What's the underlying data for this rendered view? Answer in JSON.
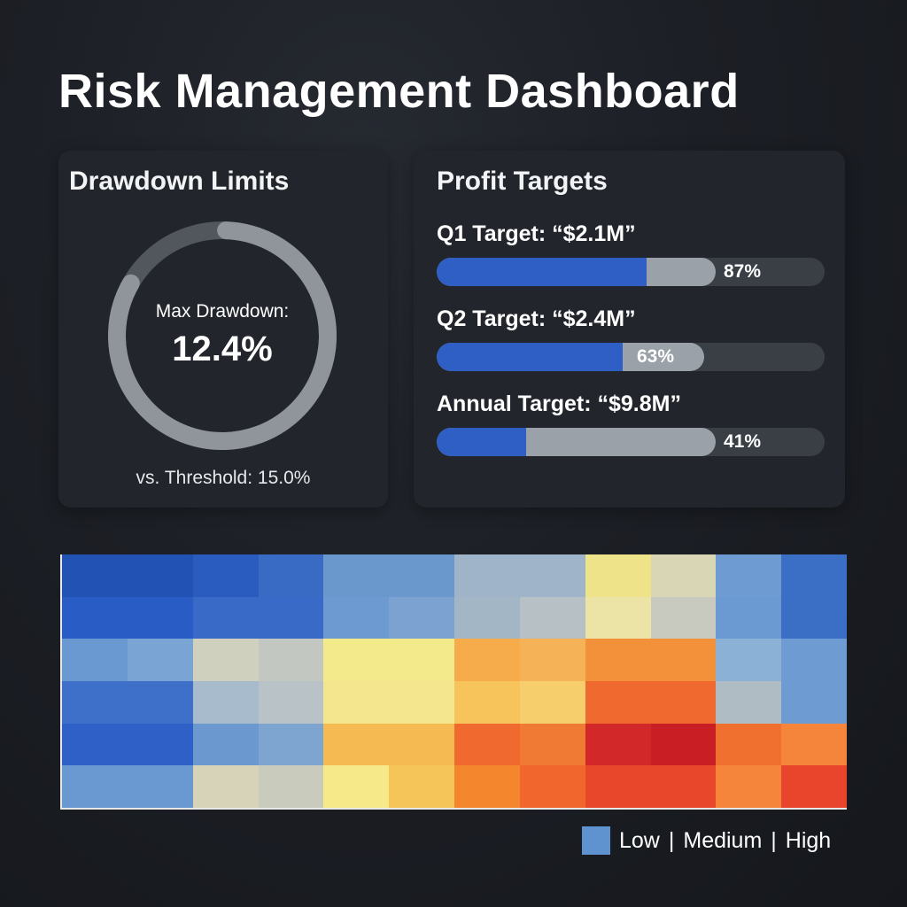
{
  "title": "Risk Management Dashboard",
  "drawdown": {
    "title": "Drawdown Limits",
    "label": "Max Drawdown:",
    "value": "12.4%",
    "threshold": "vs. Threshold: 15.0%",
    "ring_fraction": 0.827,
    "colors": {
      "ring": "#8f959b",
      "track": "#52575e"
    }
  },
  "profit": {
    "title": "Profit Targets",
    "targets": [
      {
        "label": "Q1 Target: “$2.1M”",
        "pct": "87%",
        "fill_fraction": 0.54,
        "mid_fraction": 0.72
      },
      {
        "label": "Q2 Target: “$2.4M”",
        "pct": "63%",
        "fill_fraction": 0.48,
        "mid_fraction": 0.69
      },
      {
        "label": "Annual Target: “$9.8M”",
        "pct": "41%",
        "fill_fraction": 0.23,
        "mid_fraction": 0.72
      }
    ],
    "colors": {
      "fill": "#2f5fc4",
      "mid": "#9aa1a8",
      "track": "#3a3f46"
    }
  },
  "heatmap": {
    "rows": [
      [
        "#2352b5",
        "#2352b5",
        "#2a5cc0",
        "#3a6bc4",
        "#6a98cc",
        "#6a98cc",
        "#9fb4c8",
        "#9fb4c8",
        "#efe38a",
        "#d8d6b4",
        "#6e9cd2",
        "#3b6fc6"
      ],
      [
        "#2a5cc5",
        "#2a5cc5",
        "#3a6ac8",
        "#3a6ac8",
        "#6d9ad0",
        "#7ba2d0",
        "#a3b6c6",
        "#b7c0c4",
        "#ece3a6",
        "#c8cac0",
        "#6b99d2",
        "#3b6fc6"
      ],
      [
        "#6a99d1",
        "#7aa4d3",
        "#cfd0bd",
        "#c2c7c2",
        "#f3ea8b",
        "#f3ea8b",
        "#f6ac4b",
        "#f6b256",
        "#f3913a",
        "#f3913a",
        "#8bb1d6",
        "#6e9bd2"
      ],
      [
        "#3e70c9",
        "#3e70c9",
        "#a8bbcc",
        "#b9c2c6",
        "#f4e68e",
        "#f4e68e",
        "#f7c35b",
        "#f6cf6c",
        "#f06a2f",
        "#f06a2f",
        "#b0bcc4",
        "#6e9bd2"
      ],
      [
        "#2e60c8",
        "#2e60c8",
        "#6a98cf",
        "#7ea5cf",
        "#f5bb52",
        "#f5bb52",
        "#f06a2f",
        "#f07a34",
        "#d2282a",
        "#c91e24",
        "#f0712f",
        "#f4853a"
      ],
      [
        "#6a99d1",
        "#6a99d1",
        "#d6d3b8",
        "#c9cbbd",
        "#f5e98a",
        "#f5c55a",
        "#f4862e",
        "#f0662c",
        "#e9472b",
        "#e9472b",
        "#f4853a",
        "#e8452c"
      ]
    ]
  },
  "legend": {
    "labels": [
      "Low",
      "Medium",
      "High"
    ],
    "separator": "|",
    "color": "#5f93d0"
  }
}
